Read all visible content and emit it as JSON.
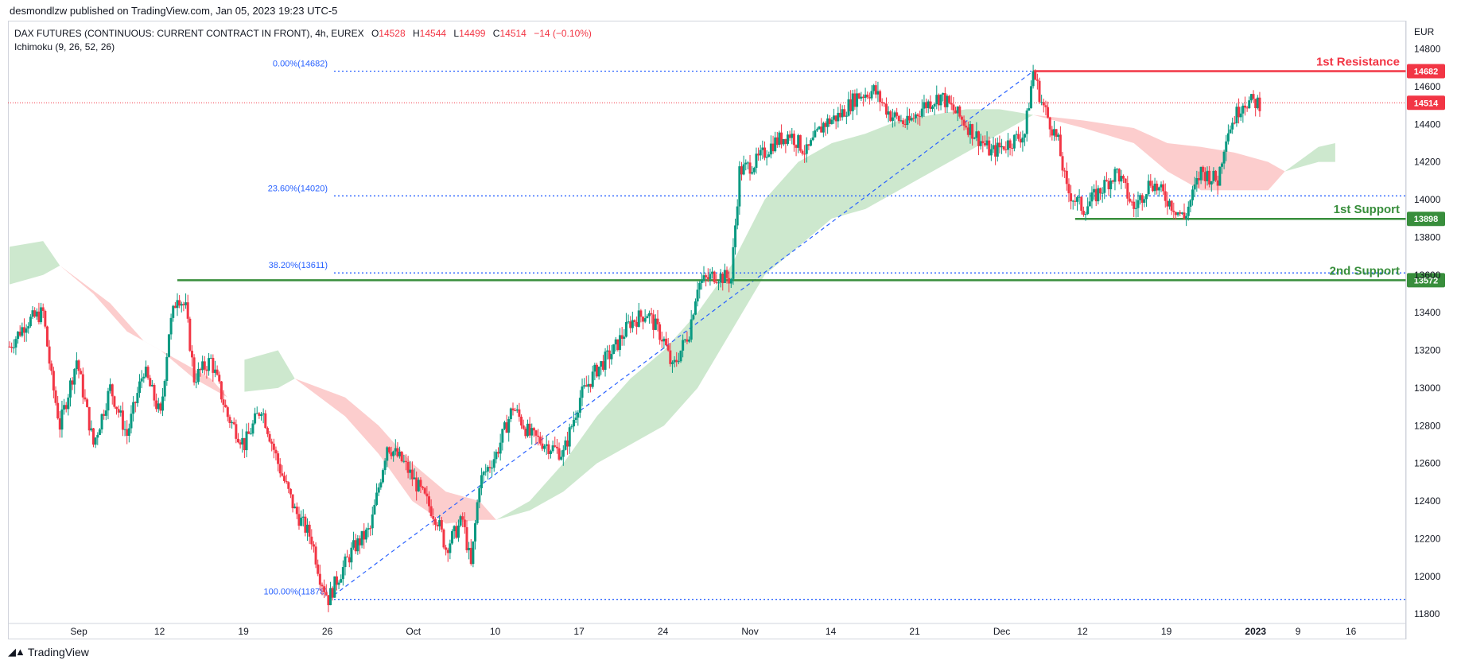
{
  "header": {
    "credit": "desmondlzw published on TradingView.com, Jan 05, 2023 19:23 UTC-5"
  },
  "legend": {
    "symbol": "DAX FUTURES (CONTINUOUS: CURRENT CONTRACT IN FRONT), 4h, EUREX",
    "o_label": "O",
    "o_value": "14528",
    "h_label": "H",
    "h_value": "14544",
    "l_label": "L",
    "l_value": "14499",
    "c_label": "C",
    "c_value": "14514",
    "change": "−14 (−0.10%)",
    "indicator": "Ichimoku (9, 26, 52, 26)"
  },
  "footer": {
    "brand": "TradingView"
  },
  "colors": {
    "up": "#089981",
    "down": "#f23645",
    "cloud_green": "#c8e6c9",
    "cloud_red": "#fcc8c8",
    "fib": "#2962ff",
    "resistance": "#f23645",
    "support": "#388e3c"
  },
  "chart_data": {
    "type": "candlestick",
    "currency": "EUR",
    "ylim": [
      11750,
      14950
    ],
    "y_ticks": [
      11800,
      12000,
      12200,
      12400,
      12600,
      12800,
      13000,
      13200,
      13400,
      13600,
      13800,
      14000,
      14200,
      14400,
      14600,
      14800
    ],
    "x_ticks": [
      {
        "label": "Sep",
        "bold": false
      },
      {
        "label": "12",
        "bold": false
      },
      {
        "label": "19",
        "bold": false
      },
      {
        "label": "26",
        "bold": false
      },
      {
        "label": "Oct",
        "bold": false
      },
      {
        "label": "10",
        "bold": false
      },
      {
        "label": "17",
        "bold": false
      },
      {
        "label": "24",
        "bold": false
      },
      {
        "label": "Nov",
        "bold": false
      },
      {
        "label": "14",
        "bold": false
      },
      {
        "label": "21",
        "bold": false
      },
      {
        "label": "Dec",
        "bold": false
      },
      {
        "label": "12",
        "bold": false
      },
      {
        "label": "19",
        "bold": false
      },
      {
        "label": "2023",
        "bold": true
      },
      {
        "label": "9",
        "bold": false
      },
      {
        "label": "16",
        "bold": false
      }
    ],
    "price_path": [
      [
        0,
        13220
      ],
      [
        2,
        13350
      ],
      [
        4,
        13400
      ],
      [
        5,
        13050
      ],
      [
        6,
        12800
      ],
      [
        8,
        13150
      ],
      [
        10,
        12700
      ],
      [
        12,
        13000
      ],
      [
        14,
        12750
      ],
      [
        16,
        13100
      ],
      [
        18,
        12850
      ],
      [
        19,
        13300
      ],
      [
        20,
        13500
      ],
      [
        21,
        13420
      ],
      [
        22,
        13050
      ],
      [
        24,
        13150
      ],
      [
        26,
        12850
      ],
      [
        28,
        12700
      ],
      [
        30,
        12900
      ],
      [
        32,
        12600
      ],
      [
        34,
        12350
      ],
      [
        36,
        12200
      ],
      [
        37,
        12000
      ],
      [
        38,
        11880
      ],
      [
        39,
        11980
      ],
      [
        41,
        12150
      ],
      [
        43,
        12250
      ],
      [
        45,
        12700
      ],
      [
        47,
        12600
      ],
      [
        49,
        12450
      ],
      [
        51,
        12300
      ],
      [
        52,
        12150
      ],
      [
        54,
        12300
      ],
      [
        55,
        12050
      ],
      [
        56,
        12500
      ],
      [
        58,
        12650
      ],
      [
        60,
        12900
      ],
      [
        62,
        12750
      ],
      [
        64,
        12700
      ],
      [
        66,
        12650
      ],
      [
        68,
        12950
      ],
      [
        70,
        13100
      ],
      [
        72,
        13200
      ],
      [
        74,
        13350
      ],
      [
        76,
        13400
      ],
      [
        78,
        13250
      ],
      [
        79,
        13100
      ],
      [
        81,
        13300
      ],
      [
        82,
        13550
      ],
      [
        84,
        13600
      ],
      [
        86,
        13580
      ],
      [
        87,
        14150
      ],
      [
        89,
        14200
      ],
      [
        91,
        14300
      ],
      [
        93,
        14350
      ],
      [
        95,
        14250
      ],
      [
        97,
        14400
      ],
      [
        99,
        14450
      ],
      [
        101,
        14550
      ],
      [
        103,
        14580
      ],
      [
        105,
        14450
      ],
      [
        107,
        14400
      ],
      [
        109,
        14500
      ],
      [
        111,
        14550
      ],
      [
        113,
        14450
      ],
      [
        115,
        14350
      ],
      [
        117,
        14250
      ],
      [
        119,
        14300
      ],
      [
        121,
        14350
      ],
      [
        122,
        14682
      ],
      [
        123,
        14520
      ],
      [
        125,
        14300
      ],
      [
        126,
        14050
      ],
      [
        128,
        13950
      ],
      [
        130,
        14050
      ],
      [
        132,
        14150
      ],
      [
        134,
        13950
      ],
      [
        136,
        14100
      ],
      [
        138,
        14000
      ],
      [
        140,
        13900
      ],
      [
        142,
        14150
      ],
      [
        144,
        14100
      ],
      [
        145,
        14350
      ],
      [
        147,
        14520
      ],
      [
        149,
        14514
      ]
    ],
    "ichimoku_cloud": [
      {
        "color": "green",
        "upper": [
          [
            0,
            13750
          ],
          [
            4,
            13780
          ],
          [
            6,
            13650
          ]
        ],
        "lower": [
          [
            0,
            13550
          ],
          [
            4,
            13600
          ],
          [
            6,
            13650
          ]
        ]
      },
      {
        "color": "red",
        "upper": [
          [
            6,
            13650
          ],
          [
            12,
            13450
          ],
          [
            16,
            13250
          ],
          [
            20,
            13150
          ],
          [
            24,
            13050
          ],
          [
            26,
            12950
          ]
        ],
        "lower": [
          [
            6,
            13650
          ],
          [
            10,
            13500
          ],
          [
            14,
            13300
          ],
          [
            18,
            13200
          ],
          [
            22,
            13050
          ],
          [
            26,
            12950
          ]
        ]
      },
      {
        "color": "green",
        "upper": [
          [
            28,
            13150
          ],
          [
            32,
            13200
          ],
          [
            34,
            13050
          ]
        ],
        "lower": [
          [
            28,
            12980
          ],
          [
            32,
            13000
          ],
          [
            34,
            13050
          ]
        ]
      },
      {
        "color": "red",
        "upper": [
          [
            34,
            13050
          ],
          [
            40,
            12950
          ],
          [
            44,
            12800
          ],
          [
            48,
            12600
          ],
          [
            52,
            12450
          ],
          [
            56,
            12400
          ],
          [
            58,
            12300
          ]
        ],
        "lower": [
          [
            34,
            13050
          ],
          [
            40,
            12850
          ],
          [
            44,
            12650
          ],
          [
            48,
            12400
          ],
          [
            52,
            12280
          ],
          [
            56,
            12300
          ],
          [
            58,
            12300
          ]
        ]
      },
      {
        "color": "green",
        "upper": [
          [
            58,
            12300
          ],
          [
            62,
            12400
          ],
          [
            66,
            12600
          ],
          [
            70,
            12850
          ],
          [
            74,
            13050
          ],
          [
            78,
            13200
          ],
          [
            82,
            13400
          ],
          [
            86,
            13650
          ],
          [
            90,
            14000
          ],
          [
            94,
            14200
          ],
          [
            98,
            14300
          ],
          [
            102,
            14350
          ],
          [
            106,
            14420
          ],
          [
            110,
            14450
          ],
          [
            114,
            14480
          ],
          [
            118,
            14480
          ],
          [
            122,
            14450
          ]
        ],
        "lower": [
          [
            58,
            12300
          ],
          [
            62,
            12350
          ],
          [
            66,
            12450
          ],
          [
            70,
            12600
          ],
          [
            74,
            12700
          ],
          [
            78,
            12800
          ],
          [
            82,
            13000
          ],
          [
            86,
            13300
          ],
          [
            90,
            13600
          ],
          [
            94,
            13750
          ],
          [
            98,
            13900
          ],
          [
            102,
            13950
          ],
          [
            106,
            14050
          ],
          [
            110,
            14150
          ],
          [
            114,
            14250
          ],
          [
            118,
            14350
          ],
          [
            122,
            14450
          ]
        ]
      },
      {
        "color": "red",
        "upper": [
          [
            122,
            14450
          ],
          [
            128,
            14420
          ],
          [
            134,
            14380
          ],
          [
            138,
            14300
          ],
          [
            142,
            14280
          ],
          [
            146,
            14250
          ],
          [
            150,
            14200
          ],
          [
            152,
            14150
          ]
        ],
        "lower": [
          [
            122,
            14450
          ],
          [
            128,
            14380
          ],
          [
            134,
            14300
          ],
          [
            138,
            14150
          ],
          [
            142,
            14050
          ],
          [
            146,
            14050
          ],
          [
            150,
            14050
          ],
          [
            152,
            14150
          ]
        ]
      },
      {
        "color": "green",
        "upper": [
          [
            152,
            14150
          ],
          [
            156,
            14280
          ],
          [
            158,
            14300
          ]
        ],
        "lower": [
          [
            152,
            14150
          ],
          [
            156,
            14200
          ],
          [
            158,
            14200
          ]
        ]
      }
    ],
    "fibonacci": {
      "levels": [
        {
          "label": "0.00%(14682)",
          "price": 14682
        },
        {
          "label": "23.60%(14020)",
          "price": 14020
        },
        {
          "label": "38.20%(13611)",
          "price": 13611
        },
        {
          "label": "100.00%(11878)",
          "price": 11878
        }
      ],
      "trend_from": [
        38,
        11878
      ],
      "trend_to": [
        122,
        14682
      ]
    },
    "horizontal_levels": [
      {
        "name": "1st Resistance",
        "price": 14682,
        "color": "red",
        "tag": "14682",
        "from": 122
      },
      {
        "name": "1st Support",
        "price": 13898,
        "color": "green",
        "tag": "13898",
        "from": 127
      },
      {
        "name": "2nd Support",
        "price": 13572,
        "color": "green",
        "tag": "13572",
        "from": 20
      }
    ],
    "current_price": {
      "value": 14514,
      "tag": "14514"
    }
  }
}
